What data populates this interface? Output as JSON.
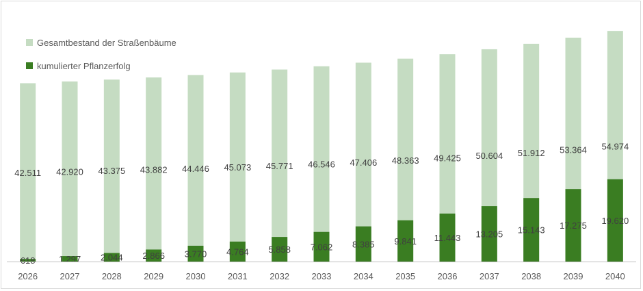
{
  "colors": {
    "total": "#c5dcc2",
    "planted": "#3a7d22",
    "axis": "#bfbfbf"
  },
  "legend": {
    "items": [
      {
        "label": "Gesamtbestand der Straßenbäume",
        "color": "#c5dcc2"
      },
      {
        "label": "kumulierter Pflanzerfolg",
        "color": "#3a7d22"
      }
    ]
  },
  "chart_data": {
    "type": "bar",
    "title": "",
    "xlabel": "",
    "ylabel": "",
    "legend_position": "top-left",
    "grid": false,
    "categories": [
      "2026",
      "2027",
      "2028",
      "2029",
      "2030",
      "2031",
      "2032",
      "2033",
      "2034",
      "2035",
      "2036",
      "2037",
      "2038",
      "2039",
      "2040"
    ],
    "series": [
      {
        "name": "Gesamtbestand der Straßenbäume",
        "values": [
          42511,
          42920,
          43375,
          43882,
          44446,
          45073,
          45771,
          46546,
          47406,
          48363,
          49425,
          50604,
          51912,
          53364,
          54974
        ],
        "labels": [
          "42.511",
          "42.920",
          "43.375",
          "43.882",
          "44.446",
          "45.073",
          "45.771",
          "46.546",
          "47.406",
          "48.363",
          "49.425",
          "50.604",
          "51.912",
          "53.364",
          "54.974"
        ]
      },
      {
        "name": "kumulierter Pflanzerfolg",
        "values": [
          618,
          1297,
          2044,
          2866,
          3770,
          4764,
          5858,
          7062,
          8385,
          9841,
          11443,
          13205,
          15143,
          17275,
          19620
        ],
        "labels": [
          "618",
          "1.297",
          "2.044",
          "2.866",
          "3.770",
          "4.764",
          "5.858",
          "7.062",
          "8.385",
          "9.841",
          "11.443",
          "13.205",
          "15.143",
          "17.275",
          "19.620"
        ]
      }
    ]
  }
}
